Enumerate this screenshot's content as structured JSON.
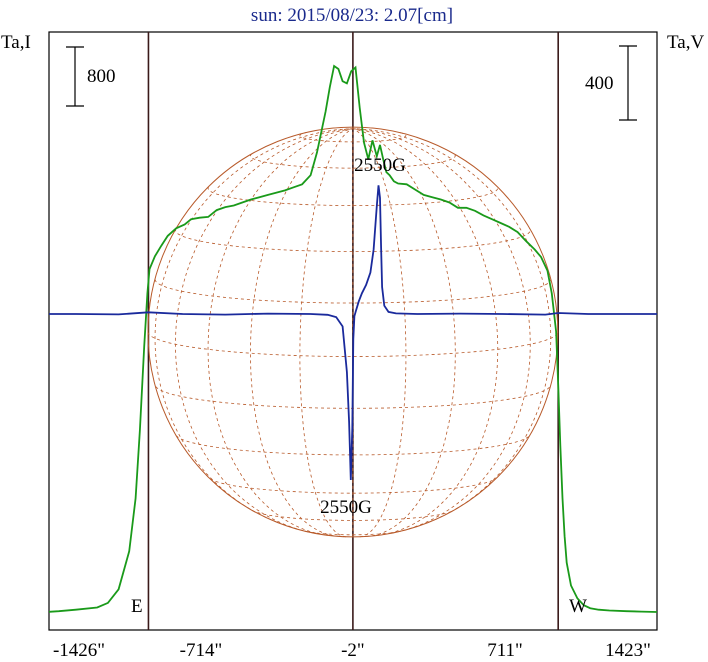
{
  "chart_data": {
    "type": "line",
    "title": "sun: 2015/08/23: 2.07[cm]",
    "ylabel_left": "Ta,I",
    "ylabel_right": "Ta,V",
    "scale_left": "800",
    "scale_right": "400",
    "x_ticks": [
      "-1426\"",
      "-714\"",
      "-2\"",
      "711\"",
      "1423\""
    ],
    "xlim": [
      -1426,
      1423
    ],
    "limb_labels": {
      "east": "E",
      "west": "W"
    },
    "limb_positions": [
      -960,
      960
    ],
    "center_marker": -2,
    "annotations": [
      "2550G",
      "2550G"
    ],
    "colors": {
      "intensity": "#1a9a1a",
      "polarization": "#1a2a9c",
      "grid": "#b85a2a",
      "title": "#1a2a8c"
    },
    "series": [
      {
        "x": [
          -1426,
          -1380,
          -1300,
          -1200,
          -1150,
          -1100,
          -1050,
          -1020,
          -1000,
          -980,
          -965,
          -955,
          -930,
          -900,
          -870,
          -830,
          -790,
          -760,
          -720,
          -680,
          -640,
          -600,
          -560,
          -520,
          -480,
          -440,
          -400,
          -360,
          -320,
          -280,
          -240,
          -200,
          -170,
          -150,
          -130,
          -110,
          -90,
          -70,
          -50,
          -30,
          -10,
          10,
          30,
          50,
          70,
          90,
          110,
          125,
          140,
          155,
          170,
          190,
          210,
          250,
          290,
          330,
          370,
          410,
          450,
          490,
          530,
          570,
          610,
          650,
          690,
          730,
          770,
          810,
          850,
          880,
          910,
          930,
          950,
          960,
          970,
          980,
          990,
          1000,
          1020,
          1050,
          1080,
          1110,
          1150,
          1200,
          1280,
          1350,
          1423
        ],
        "values": [
          2,
          10,
          30,
          60,
          120,
          300,
          800,
          1500,
          2400,
          3500,
          4200,
          4520,
          4690,
          4830,
          4960,
          5060,
          5110,
          5180,
          5200,
          5210,
          5300,
          5340,
          5360,
          5400,
          5440,
          5470,
          5500,
          5530,
          5560,
          5600,
          5640,
          5760,
          6060,
          6330,
          6600,
          6920,
          7200,
          7160,
          7000,
          6970,
          7130,
          7180,
          6650,
          6190,
          5970,
          6220,
          6010,
          6160,
          5970,
          5800,
          5760,
          5680,
          5650,
          5640,
          5570,
          5500,
          5470,
          5440,
          5400,
          5330,
          5330,
          5290,
          5230,
          5180,
          5130,
          5080,
          5010,
          4890,
          4780,
          4680,
          4500,
          4200,
          3700,
          3000,
          2200,
          1500,
          1000,
          650,
          350,
          180,
          90,
          50,
          30,
          20,
          10,
          5,
          0
        ]
      },
      {
        "x": [
          -1426,
          -1300,
          -1100,
          -960,
          -800,
          -600,
          -400,
          -200,
          -120,
          -80,
          -50,
          -30,
          -20,
          -12,
          -5,
          0,
          5,
          12,
          25,
          40,
          60,
          80,
          95,
          110,
          118,
          125,
          130,
          135,
          145,
          165,
          200,
          300,
          500,
          700,
          900,
          960,
          1100,
          1300,
          1423
        ],
        "values": [
          0,
          0,
          -2,
          8,
          0,
          -3,
          2,
          0,
          -4,
          -15,
          -60,
          -280,
          -520,
          -800,
          -550,
          -120,
          -10,
          15,
          60,
          100,
          140,
          200,
          310,
          520,
          620,
          560,
          320,
          130,
          40,
          10,
          3,
          0,
          2,
          0,
          -3,
          5,
          0,
          0,
          0
        ]
      }
    ]
  }
}
